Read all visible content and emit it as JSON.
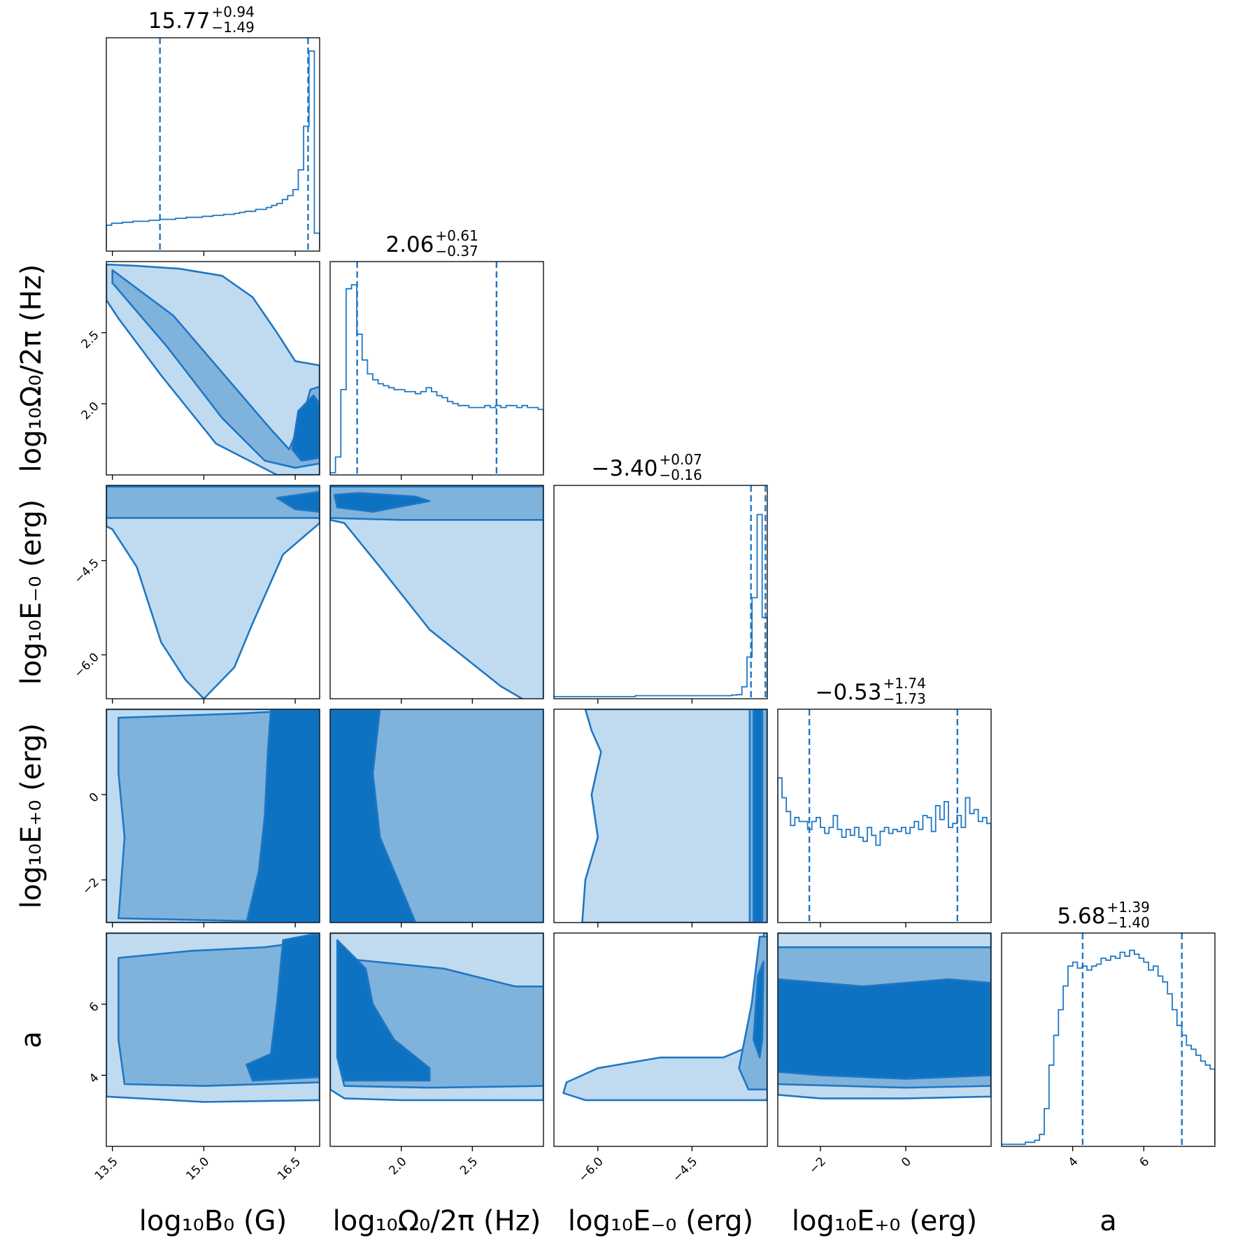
{
  "colors": {
    "line": "#1f77c4",
    "fill_outer": "#c0dbf0",
    "fill_mid": "#7fb3dc",
    "fill_inner": "#0d72c2",
    "text": "#000000"
  },
  "chart_data": {
    "type": "corner",
    "parameters": [
      {
        "key": "B0",
        "axis_label": "log₁₀B₀ (G)",
        "range": [
          13.4,
          16.9
        ],
        "ticks": [
          13.5,
          15.0,
          16.5
        ],
        "tick_labels": [
          "13.5",
          "15.0",
          "16.5"
        ],
        "median": "15.77",
        "plus": "+0.94",
        "minus": "−1.49",
        "quantiles": [
          14.28,
          16.71
        ]
      },
      {
        "key": "Omega0",
        "axis_label": "log₁₀Ω₀/2π (Hz)",
        "range": [
          1.5,
          3.0
        ],
        "ticks": [
          2.0,
          2.5
        ],
        "tick_labels": [
          "2.0",
          "2.5"
        ],
        "median": "2.06",
        "plus": "+0.61",
        "minus": "−0.37",
        "quantiles": [
          1.69,
          2.67
        ]
      },
      {
        "key": "Eminus0",
        "axis_label": "log₁₀E₋₀ (erg)",
        "range": [
          -6.7,
          -3.3
        ],
        "ticks": [
          -6.0,
          -4.5
        ],
        "tick_labels": [
          "−6.0",
          "−4.5"
        ],
        "median": "−3.40",
        "plus": "+0.07",
        "minus": "−0.16",
        "quantiles": [
          -3.56,
          -3.33
        ]
      },
      {
        "key": "Eplus0",
        "axis_label": "log₁₀E₊₀ (erg)",
        "range": [
          -3.0,
          2.0
        ],
        "ticks": [
          -2,
          0
        ],
        "tick_labels": [
          "−2",
          "0"
        ],
        "median": "−0.53",
        "plus": "+1.74",
        "minus": "−1.73",
        "quantiles": [
          -2.26,
          1.21
        ]
      },
      {
        "key": "a",
        "axis_label": "a",
        "range": [
          2.0,
          8.0
        ],
        "ticks": [
          4,
          6
        ],
        "tick_labels": [
          "4",
          "6"
        ],
        "median": "5.68",
        "plus": "+1.39",
        "minus": "−1.40",
        "quantiles": [
          4.28,
          7.07
        ]
      }
    ],
    "histograms": {
      "B0": [
        0.12,
        0.13,
        0.13,
        0.135,
        0.135,
        0.14,
        0.14,
        0.14,
        0.145,
        0.145,
        0.15,
        0.15,
        0.15,
        0.155,
        0.155,
        0.16,
        0.16,
        0.16,
        0.165,
        0.165,
        0.17,
        0.17,
        0.175,
        0.175,
        0.18,
        0.185,
        0.19,
        0.19,
        0.2,
        0.2,
        0.21,
        0.22,
        0.23,
        0.25,
        0.27,
        0.3,
        0.4,
        0.62,
        1.0,
        0.08
      ],
      "Omega0": [
        0.0,
        0.08,
        0.42,
        0.93,
        0.95,
        0.7,
        0.57,
        0.5,
        0.47,
        0.45,
        0.44,
        0.43,
        0.42,
        0.42,
        0.41,
        0.41,
        0.4,
        0.41,
        0.43,
        0.41,
        0.39,
        0.38,
        0.36,
        0.35,
        0.34,
        0.34,
        0.33,
        0.33,
        0.33,
        0.34,
        0.33,
        0.34,
        0.33,
        0.34,
        0.34,
        0.33,
        0.34,
        0.33,
        0.33,
        0.32
      ],
      "Eminus0": [
        0.0,
        0.0,
        0.0,
        0.0,
        0.0,
        0.0,
        0.0,
        0.0,
        0.0,
        0.0,
        0.0,
        0.0,
        0.0,
        0.0,
        0.0,
        0.0,
        0.005,
        0.005,
        0.005,
        0.005,
        0.005,
        0.005,
        0.005,
        0.005,
        0.005,
        0.005,
        0.005,
        0.005,
        0.005,
        0.005,
        0.005,
        0.005,
        0.005,
        0.005,
        0.005,
        0.008,
        0.01,
        0.05,
        0.2,
        0.5,
        0.92,
        0.4
      ],
      "Eplus0": [
        0.72,
        0.62,
        0.55,
        0.48,
        0.52,
        0.5,
        0.5,
        0.46,
        0.5,
        0.52,
        0.47,
        0.44,
        0.47,
        0.53,
        0.46,
        0.42,
        0.46,
        0.43,
        0.47,
        0.42,
        0.4,
        0.47,
        0.43,
        0.38,
        0.45,
        0.47,
        0.44,
        0.46,
        0.45,
        0.47,
        0.44,
        0.47,
        0.5,
        0.46,
        0.53,
        0.52,
        0.45,
        0.58,
        0.51,
        0.6,
        0.47,
        0.49,
        0.53,
        0.47,
        0.62,
        0.54,
        0.56,
        0.5,
        0.52,
        0.49
      ],
      "a": [
        0.0,
        0.0,
        0.0,
        0.0,
        0.0,
        0.01,
        0.01,
        0.02,
        0.05,
        0.18,
        0.4,
        0.55,
        0.68,
        0.8,
        0.9,
        0.92,
        0.89,
        0.9,
        0.88,
        0.9,
        0.91,
        0.94,
        0.93,
        0.95,
        0.94,
        0.97,
        0.95,
        0.98,
        0.96,
        0.94,
        0.92,
        0.88,
        0.9,
        0.85,
        0.82,
        0.76,
        0.68,
        0.6,
        0.55,
        0.5,
        0.48,
        0.45,
        0.42,
        0.4,
        0.38
      ]
    },
    "contour_levels": [
      "outer",
      "middle",
      "inner"
    ],
    "density_2d": [
      {
        "x": "B0",
        "y": "Omega0",
        "outer": [
          [
            13.4,
            2.98
          ],
          [
            13.9,
            2.97
          ],
          [
            14.6,
            2.95
          ],
          [
            15.3,
            2.9
          ],
          [
            15.8,
            2.75
          ],
          [
            16.2,
            2.5
          ],
          [
            16.5,
            2.3
          ],
          [
            16.9,
            2.27
          ],
          [
            16.9,
            1.5
          ],
          [
            16.2,
            1.5
          ],
          [
            15.2,
            1.72
          ],
          [
            14.3,
            2.2
          ],
          [
            13.6,
            2.6
          ],
          [
            13.4,
            2.73
          ]
        ],
        "middle": [
          [
            13.5,
            2.94
          ],
          [
            14.5,
            2.62
          ],
          [
            15.5,
            2.12
          ],
          [
            16.1,
            1.82
          ],
          [
            16.4,
            1.68
          ],
          [
            16.6,
            1.88
          ],
          [
            16.75,
            2.1
          ],
          [
            16.9,
            2.12
          ],
          [
            16.9,
            1.58
          ],
          [
            16.5,
            1.55
          ],
          [
            16.0,
            1.6
          ],
          [
            15.3,
            1.9
          ],
          [
            14.4,
            2.4
          ],
          [
            13.5,
            2.85
          ]
        ],
        "inner": [
          [
            16.55,
            1.95
          ],
          [
            16.8,
            2.06
          ],
          [
            16.9,
            2.0
          ],
          [
            16.9,
            1.62
          ],
          [
            16.6,
            1.6
          ],
          [
            16.45,
            1.68
          ]
        ]
      },
      {
        "x": "Omega0",
        "y": "Eminus0",
        "outer": [
          [
            1.5,
            -3.3
          ],
          [
            3.0,
            -3.3
          ],
          [
            3.0,
            -6.9
          ],
          [
            2.7,
            -6.5
          ],
          [
            2.2,
            -5.6
          ],
          [
            1.85,
            -4.6
          ],
          [
            1.6,
            -3.9
          ],
          [
            1.5,
            -3.85
          ]
        ],
        "middle": [
          [
            1.5,
            -3.32
          ],
          [
            3.0,
            -3.32
          ],
          [
            3.0,
            -3.85
          ],
          [
            2.5,
            -3.85
          ],
          [
            2.0,
            -3.85
          ],
          [
            1.5,
            -3.82
          ]
        ],
        "inner": [
          [
            1.53,
            -3.45
          ],
          [
            1.7,
            -3.42
          ],
          [
            2.1,
            -3.48
          ],
          [
            2.2,
            -3.55
          ],
          [
            1.8,
            -3.72
          ],
          [
            1.55,
            -3.65
          ]
        ]
      },
      {
        "x": "B0",
        "y": "Eminus0",
        "outer": [
          [
            13.4,
            -3.3
          ],
          [
            16.9,
            -3.3
          ],
          [
            16.9,
            -3.9
          ],
          [
            16.3,
            -4.4
          ],
          [
            15.8,
            -5.5
          ],
          [
            15.5,
            -6.2
          ],
          [
            15.0,
            -6.7
          ],
          [
            14.7,
            -6.4
          ],
          [
            14.3,
            -5.8
          ],
          [
            13.9,
            -4.6
          ],
          [
            13.5,
            -4.0
          ],
          [
            13.4,
            -3.95
          ]
        ],
        "middle": [
          [
            13.4,
            -3.32
          ],
          [
            16.9,
            -3.32
          ],
          [
            16.9,
            -3.82
          ],
          [
            16.0,
            -3.82
          ],
          [
            15.0,
            -3.82
          ],
          [
            14.0,
            -3.82
          ],
          [
            13.4,
            -3.82
          ]
        ],
        "inner": [
          [
            16.2,
            -3.5
          ],
          [
            16.9,
            -3.4
          ],
          [
            16.9,
            -3.72
          ],
          [
            16.5,
            -3.68
          ]
        ]
      },
      {
        "x": "Eminus0",
        "y": "Eplus0",
        "outer": [
          [
            -6.2,
            2.0
          ],
          [
            -3.3,
            2.0
          ],
          [
            -3.3,
            -3.0
          ],
          [
            -6.25,
            -3.0
          ],
          [
            -6.2,
            -2.0
          ],
          [
            -6.0,
            -1.0
          ],
          [
            -6.1,
            0.0
          ],
          [
            -5.95,
            1.0
          ],
          [
            -6.1,
            1.5
          ]
        ],
        "middle": [
          [
            -3.58,
            2.0
          ],
          [
            -3.3,
            2.0
          ],
          [
            -3.3,
            -3.0
          ],
          [
            -3.58,
            -3.0
          ]
        ],
        "inner": [
          [
            -3.52,
            2.0
          ],
          [
            -3.38,
            2.0
          ],
          [
            -3.38,
            -3.0
          ],
          [
            -3.52,
            -3.0
          ]
        ]
      },
      {
        "x": "B0",
        "y": "Eplus0",
        "outer": [
          [
            13.4,
            2.0
          ],
          [
            16.9,
            2.0
          ],
          [
            16.9,
            -3.0
          ],
          [
            13.4,
            -3.0
          ]
        ],
        "middle": [
          [
            13.6,
            1.8
          ],
          [
            15.6,
            1.9
          ],
          [
            16.9,
            2.0
          ],
          [
            16.9,
            -3.0
          ],
          [
            13.6,
            -2.9
          ],
          [
            13.7,
            -1.0
          ],
          [
            13.6,
            0.5
          ]
        ],
        "inner": [
          [
            16.1,
            2.0
          ],
          [
            16.9,
            2.0
          ],
          [
            16.9,
            -3.0
          ],
          [
            15.7,
            -3.0
          ],
          [
            15.9,
            -1.8
          ],
          [
            16.0,
            -0.5
          ],
          [
            16.05,
            1.0
          ]
        ]
      },
      {
        "x": "Omega0",
        "y": "Eplus0",
        "outer": [
          [
            1.5,
            2.0
          ],
          [
            3.0,
            2.0
          ],
          [
            3.0,
            -3.0
          ],
          [
            1.5,
            -3.0
          ]
        ],
        "middle": [
          [
            1.5,
            2.0
          ],
          [
            3.0,
            2.0
          ],
          [
            3.0,
            -3.0
          ],
          [
            1.5,
            -3.0
          ]
        ],
        "inner": [
          [
            1.5,
            2.0
          ],
          [
            1.85,
            2.0
          ],
          [
            1.8,
            0.5
          ],
          [
            1.85,
            -1.0
          ],
          [
            2.0,
            -2.2
          ],
          [
            2.1,
            -3.0
          ],
          [
            1.5,
            -3.0
          ]
        ]
      },
      {
        "x": "Eplus0",
        "y": "a",
        "outer": [
          [
            -3.0,
            8.0
          ],
          [
            2.0,
            8.0
          ],
          [
            2.0,
            3.4
          ],
          [
            0.0,
            3.35
          ],
          [
            -2.0,
            3.35
          ],
          [
            -3.0,
            3.45
          ]
        ],
        "middle": [
          [
            -3.0,
            7.6
          ],
          [
            2.0,
            7.6
          ],
          [
            2.0,
            3.7
          ],
          [
            0.0,
            3.65
          ],
          [
            -3.0,
            3.75
          ]
        ],
        "inner": [
          [
            -3.0,
            6.7
          ],
          [
            -1.0,
            6.5
          ],
          [
            1.0,
            6.7
          ],
          [
            2.0,
            6.6
          ],
          [
            2.0,
            4.0
          ],
          [
            0.0,
            3.9
          ],
          [
            -2.0,
            4.0
          ],
          [
            -3.0,
            4.1
          ]
        ]
      },
      {
        "x": "Omega0",
        "y": "a",
        "outer": [
          [
            1.5,
            8.0
          ],
          [
            3.0,
            8.0
          ],
          [
            3.0,
            3.3
          ],
          [
            2.5,
            3.3
          ],
          [
            2.0,
            3.3
          ],
          [
            1.6,
            3.35
          ],
          [
            1.5,
            3.6
          ]
        ],
        "middle": [
          [
            1.55,
            7.3
          ],
          [
            2.3,
            7.0
          ],
          [
            2.8,
            6.5
          ],
          [
            3.0,
            6.5
          ],
          [
            3.0,
            3.7
          ],
          [
            2.2,
            3.65
          ],
          [
            1.6,
            3.7
          ],
          [
            1.55,
            4.5
          ]
        ],
        "inner": [
          [
            1.55,
            7.8
          ],
          [
            1.75,
            7.0
          ],
          [
            1.8,
            6.0
          ],
          [
            1.95,
            5.0
          ],
          [
            2.2,
            4.2
          ],
          [
            2.2,
            3.85
          ],
          [
            1.6,
            3.85
          ],
          [
            1.55,
            4.5
          ]
        ]
      },
      {
        "x": "Eminus0",
        "y": "a",
        "outer": [
          [
            -6.5,
            3.8
          ],
          [
            -6.0,
            4.2
          ],
          [
            -5.0,
            4.5
          ],
          [
            -4.0,
            4.5
          ],
          [
            -3.6,
            4.8
          ],
          [
            -3.45,
            7.0
          ],
          [
            -3.35,
            8.0
          ],
          [
            -3.3,
            8.0
          ],
          [
            -3.3,
            3.3
          ],
          [
            -4.0,
            3.3
          ],
          [
            -5.0,
            3.3
          ],
          [
            -6.2,
            3.3
          ],
          [
            -6.55,
            3.5
          ]
        ],
        "middle": [
          [
            -3.75,
            4.2
          ],
          [
            -3.55,
            6.0
          ],
          [
            -3.42,
            7.9
          ],
          [
            -3.3,
            7.9
          ],
          [
            -3.3,
            3.6
          ],
          [
            -3.6,
            3.6
          ]
        ],
        "inner": [
          [
            -3.52,
            5.0
          ],
          [
            -3.45,
            6.8
          ],
          [
            -3.36,
            7.2
          ],
          [
            -3.38,
            5.0
          ],
          [
            -3.42,
            4.5
          ]
        ]
      },
      {
        "x": "B0",
        "y": "a",
        "outer": [
          [
            13.4,
            8.0
          ],
          [
            16.9,
            8.0
          ],
          [
            16.9,
            3.3
          ],
          [
            15.0,
            3.25
          ],
          [
            13.4,
            3.4
          ]
        ],
        "middle": [
          [
            13.6,
            7.3
          ],
          [
            14.8,
            7.5
          ],
          [
            16.0,
            7.6
          ],
          [
            16.9,
            7.8
          ],
          [
            16.9,
            3.8
          ],
          [
            15.0,
            3.7
          ],
          [
            13.7,
            3.75
          ],
          [
            13.6,
            5.0
          ]
        ],
        "inner": [
          [
            16.3,
            7.8
          ],
          [
            16.9,
            8.0
          ],
          [
            16.9,
            3.95
          ],
          [
            15.8,
            3.85
          ],
          [
            15.7,
            4.3
          ],
          [
            16.1,
            4.6
          ],
          [
            16.2,
            6.0
          ]
        ]
      }
    ]
  }
}
